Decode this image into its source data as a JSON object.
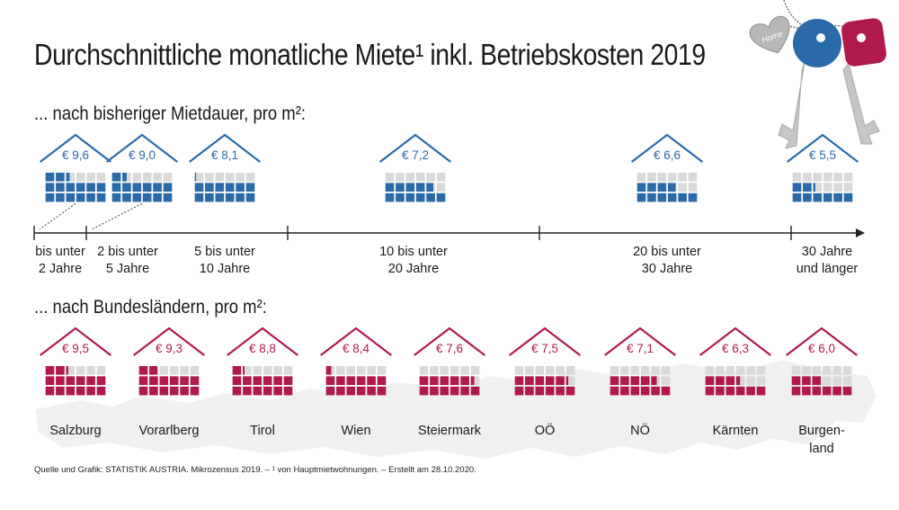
{
  "title": "Durchschnittliche monatliche Miete¹ inkl. Betriebskosten 2019",
  "subtitle_duration": "... nach bisheriger Mietdauer, pro m²:",
  "subtitle_states": "... nach Bundesländern, pro m²:",
  "source": "Quelle und Grafik: STATISTIK AUSTRIA. Mikrozensus 2019. – ¹ von Hauptmietwohnungen. – Erstellt am 28.10.2020.",
  "currency": "€",
  "keyring_label": "Home",
  "colors": {
    "duration": "#2a6aa8",
    "states": "#b01a4a",
    "empty": "#d9d9d9",
    "roof_duration": "#2a6aa8",
    "roof_states": "#b01a4a"
  },
  "icons": [
    "house-icon",
    "key-icon",
    "heart-keychain-icon",
    "austria-map-icon"
  ],
  "chart_data": [
    {
      "type": "bar",
      "title": "... nach bisheriger Mietdauer, pro m²:",
      "unit": "€ pro m²",
      "scale_max": 12,
      "categories": [
        [
          "bis unter",
          "2 Jahre"
        ],
        [
          "2 bis unter",
          "5 Jahre"
        ],
        [
          "5 bis unter",
          "10 Jahre"
        ],
        [
          "10 bis unter",
          "20 Jahre"
        ],
        [
          "20 bis unter",
          "30 Jahre"
        ],
        [
          "30 Jahre",
          "und länger"
        ]
      ],
      "values": [
        9.6,
        9.0,
        8.1,
        7.2,
        6.6,
        5.5
      ],
      "labels": [
        "9,6",
        "9,0",
        "8,1",
        "7,2",
        "6,6",
        "5,5"
      ]
    },
    {
      "type": "bar",
      "title": "... nach Bundesländern, pro m²:",
      "unit": "€ pro m²",
      "scale_max": 12,
      "categories": [
        [
          "Salzburg"
        ],
        [
          "Vorarlberg"
        ],
        [
          "Tirol"
        ],
        [
          "Wien"
        ],
        [
          "Steiermark"
        ],
        [
          "OÖ"
        ],
        [
          "NÖ"
        ],
        [
          "Kärnten"
        ],
        [
          "Burgen-",
          "land"
        ]
      ],
      "values": [
        9.5,
        9.3,
        8.8,
        8.4,
        7.6,
        7.5,
        7.1,
        6.3,
        6.0
      ],
      "labels": [
        "9,5",
        "9,3",
        "8,8",
        "8,4",
        "7,6",
        "7,5",
        "7,1",
        "6,3",
        "6,0"
      ]
    }
  ]
}
